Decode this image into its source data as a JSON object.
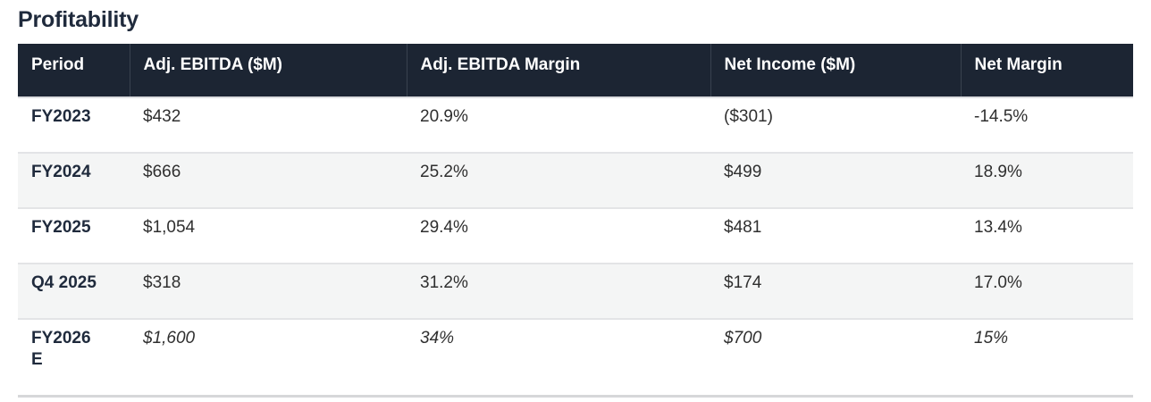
{
  "title": "Profitability",
  "colors": {
    "header_bg": "#1c2533",
    "header_text": "#ffffff",
    "title_text": "#1f2a3c",
    "period_text": "#1f2a3c",
    "body_text": "#2f2f2f",
    "stripe_bg": "#f4f5f5",
    "row_divider": "#e3e4e6",
    "bottom_border": "#d6d7d9"
  },
  "table": {
    "columns": [
      "Period",
      "Adj. EBITDA ($M)",
      "Adj. EBITDA Margin",
      "Net Income ($M)",
      "Net Margin"
    ],
    "rows": [
      {
        "period": "FY2023",
        "adj_ebitda": "$432",
        "adj_ebitda_margin": "20.9%",
        "net_income": "($301)",
        "net_margin": "-14.5%",
        "estimate": false
      },
      {
        "period": "FY2024",
        "adj_ebitda": "$666",
        "adj_ebitda_margin": "25.2%",
        "net_income": "$499",
        "net_margin": "18.9%",
        "estimate": false
      },
      {
        "period": "FY2025",
        "adj_ebitda": "$1,054",
        "adj_ebitda_margin": "29.4%",
        "net_income": "$481",
        "net_margin": "13.4%",
        "estimate": false
      },
      {
        "period": "Q4 2025",
        "adj_ebitda": "$318",
        "adj_ebitda_margin": "31.2%",
        "net_income": "$174",
        "net_margin": "17.0%",
        "estimate": false
      },
      {
        "period": "FY2026\nE",
        "adj_ebitda": "$1,600",
        "adj_ebitda_margin": "34%",
        "net_income": "$700",
        "net_margin": "15%",
        "estimate": true
      }
    ]
  },
  "chart_data": {
    "type": "table",
    "title": "Profitability",
    "categories": [
      "FY2023",
      "FY2024",
      "FY2025",
      "Q4 2025",
      "FY2026 E"
    ],
    "series": [
      {
        "name": "Adj. EBITDA ($M)",
        "values": [
          432,
          666,
          1054,
          318,
          1600
        ]
      },
      {
        "name": "Adj. EBITDA Margin",
        "values": [
          20.9,
          25.2,
          29.4,
          31.2,
          34
        ]
      },
      {
        "name": "Net Income ($M)",
        "values": [
          -301,
          499,
          481,
          174,
          700
        ]
      },
      {
        "name": "Net Margin",
        "values": [
          -14.5,
          18.9,
          13.4,
          17.0,
          15
        ]
      }
    ],
    "notes": "FY2026 E row values are estimates (shown in italics)"
  }
}
